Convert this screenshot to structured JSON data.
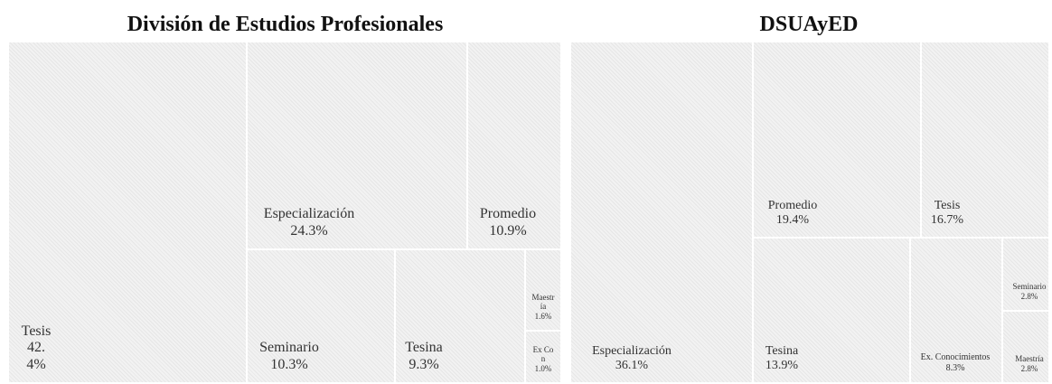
{
  "chart_data": [
    {
      "type": "treemap",
      "title": "División de Estudios Profesionales",
      "categories": [
        "Tesis",
        "Especialización",
        "Promedio",
        "Seminario",
        "Tesina",
        "Maestría",
        "Ex Con"
      ],
      "values": [
        42.4,
        24.3,
        10.9,
        10.3,
        9.3,
        1.6,
        1.0
      ],
      "value_labels": [
        "42.4%",
        "24.3%",
        "10.9%",
        "10.3%",
        "9.3%",
        "1.6%",
        "1.0%"
      ]
    },
    {
      "type": "treemap",
      "title": "DSUAyED",
      "categories": [
        "Especialización",
        "Promedio",
        "Tesis",
        "Tesina",
        "Ex. Conocimientos",
        "Seminario",
        "Maestría"
      ],
      "values": [
        36.1,
        19.4,
        16.7,
        13.9,
        8.3,
        2.8,
        2.8
      ],
      "value_labels": [
        "36.1%",
        "19.4%",
        "16.7%",
        "13.9%",
        "8.3%",
        "2.8%",
        "2.8%"
      ]
    }
  ]
}
